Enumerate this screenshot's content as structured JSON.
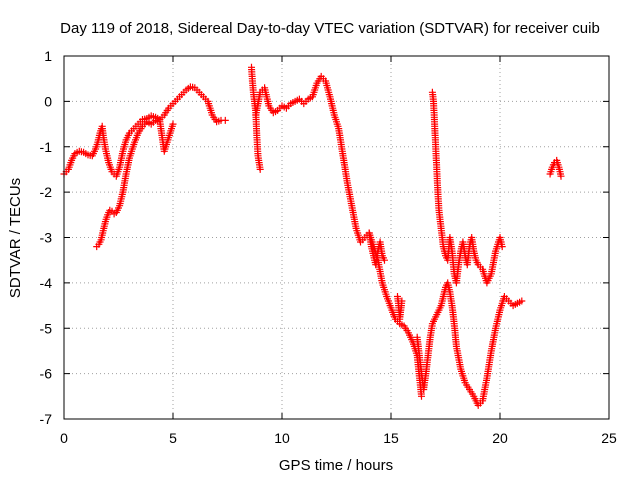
{
  "chart_data": {
    "type": "scatter",
    "title": "Day 119 of 2018, Sidereal Day-to-day VTEC variation (SDTVAR) for receiver cuib",
    "xlabel": "GPS time / hours",
    "ylabel": "SDTVAR / TECUs",
    "xlim": [
      0,
      25
    ],
    "ylim": [
      -7,
      1
    ],
    "xticks": [
      "0",
      "5",
      "10",
      "15",
      "20",
      "25"
    ],
    "yticks": [
      "1",
      "0",
      "-1",
      "-2",
      "-3",
      "-4",
      "-5",
      "-6",
      "-7"
    ],
    "grid": true,
    "marker": "+",
    "color": "#ff0000",
    "series": [
      {
        "name": "SDTVAR",
        "segments": [
          {
            "x": [
              0.0,
              0.2,
              0.35,
              0.5,
              0.7,
              0.9,
              1.1,
              1.3,
              1.45,
              1.55,
              1.65,
              1.75,
              1.8,
              1.9,
              2.05,
              2.2,
              2.4,
              2.55,
              2.7,
              2.85,
              3.0,
              3.2,
              3.4,
              3.6,
              3.8,
              4.0,
              4.2,
              4.4,
              4.6,
              4.8,
              5.0,
              5.2,
              5.4,
              5.6,
              5.8,
              6.0,
              6.2,
              6.4,
              6.6,
              6.8,
              7.0,
              7.2,
              7.4
            ],
            "y": [
              -1.6,
              -1.5,
              -1.3,
              -1.15,
              -1.1,
              -1.12,
              -1.18,
              -1.2,
              -1.05,
              -0.9,
              -0.7,
              -0.55,
              -0.75,
              -1.05,
              -1.35,
              -1.55,
              -1.65,
              -1.45,
              -1.1,
              -0.85,
              -0.7,
              -0.6,
              -0.5,
              -0.4,
              -0.38,
              -0.32,
              -0.35,
              -0.4,
              -0.3,
              -0.15,
              -0.05,
              0.05,
              0.15,
              0.25,
              0.32,
              0.3,
              0.2,
              0.1,
              0.0,
              -0.3,
              -0.45,
              -0.42,
              -0.42
            ]
          },
          {
            "x": [
              1.5,
              1.6,
              1.7,
              1.8,
              1.9,
              2.0,
              2.1,
              2.2,
              2.3,
              2.4,
              2.55,
              2.7,
              2.85,
              3.0,
              3.2,
              3.4,
              3.6,
              3.8,
              4.0,
              4.2,
              4.4,
              4.6,
              4.8,
              5.0
            ],
            "y": [
              -3.2,
              -3.15,
              -3.05,
              -2.85,
              -2.65,
              -2.5,
              -2.4,
              -2.42,
              -2.48,
              -2.45,
              -2.3,
              -2.0,
              -1.6,
              -1.25,
              -0.95,
              -0.7,
              -0.55,
              -0.45,
              -0.5,
              -0.42,
              -0.45,
              -1.1,
              -0.8,
              -0.5
            ]
          },
          {
            "x": [
              8.6,
              8.65,
              8.7,
              8.8,
              8.85,
              8.9,
              9.0
            ],
            "y": [
              0.75,
              0.4,
              0.15,
              -0.25,
              -0.8,
              -1.2,
              -1.5
            ]
          },
          {
            "x": [
              8.8,
              9.0,
              9.2,
              9.4,
              9.6,
              9.8,
              10.0,
              10.2,
              10.4,
              10.6,
              10.8,
              11.0,
              11.2,
              11.4,
              11.6,
              11.8,
              12.0,
              12.2,
              12.4,
              12.6,
              12.8,
              13.0,
              13.2,
              13.4,
              13.6,
              13.8,
              14.0,
              14.2,
              14.4,
              14.6,
              14.8,
              15.0,
              15.2,
              15.4,
              15.6,
              15.8,
              16.0,
              16.2,
              16.4
            ],
            "y": [
              -0.3,
              0.2,
              0.3,
              -0.1,
              -0.25,
              -0.2,
              -0.1,
              -0.15,
              -0.05,
              0.0,
              0.05,
              -0.05,
              0.05,
              0.1,
              0.4,
              0.55,
              0.45,
              0.1,
              -0.3,
              -0.6,
              -1.2,
              -1.8,
              -2.3,
              -2.8,
              -3.1,
              -3.0,
              -2.9,
              -3.2,
              -3.5,
              -4.0,
              -4.3,
              -4.55,
              -4.8,
              -4.9,
              -4.95,
              -5.1,
              -5.3,
              -5.6,
              -6.5
            ]
          },
          {
            "x": [
              14.0,
              14.1,
              14.2,
              14.3,
              14.4,
              14.5,
              14.6,
              14.7
            ],
            "y": [
              -2.9,
              -3.2,
              -3.4,
              -3.6,
              -3.3,
              -3.1,
              -3.4,
              -3.5
            ]
          },
          {
            "x": [
              16.2,
              16.3,
              16.4,
              16.5,
              16.6,
              16.7,
              16.8,
              16.9,
              17.0,
              17.05,
              17.1,
              17.2,
              17.3,
              17.4,
              17.5,
              17.6,
              17.7,
              17.8,
              17.9,
              18.0,
              18.2,
              18.4,
              18.6,
              18.8,
              19.0,
              19.2,
              19.4,
              19.6,
              19.8,
              20.0,
              20.2,
              20.4,
              20.6,
              20.8,
              21.0
            ],
            "y": [
              -5.2,
              -5.6,
              -6.0,
              -6.35,
              -6.0,
              -5.6,
              -5.2,
              -4.9,
              -4.8,
              -4.75,
              -4.7,
              -4.6,
              -4.5,
              -4.3,
              -4.1,
              -4.0,
              -4.2,
              -4.5,
              -4.9,
              -5.4,
              -5.9,
              -6.2,
              -6.35,
              -6.5,
              -6.7,
              -6.6,
              -6.1,
              -5.5,
              -5.0,
              -4.6,
              -4.3,
              -4.4,
              -4.5,
              -4.45,
              -4.4
            ]
          },
          {
            "x": [
              16.9,
              16.95,
              17.0,
              17.05,
              17.1,
              17.15,
              17.2,
              17.3,
              17.4,
              17.5,
              17.6,
              17.7,
              17.8,
              17.9,
              18.0,
              18.1,
              18.2,
              18.3,
              18.4,
              18.5,
              18.6,
              18.7,
              18.8,
              18.9,
              19.0,
              19.2,
              19.4,
              19.6,
              19.8,
              20.0,
              20.1
            ],
            "y": [
              0.2,
              0.0,
              -0.5,
              -1.0,
              -1.5,
              -2.0,
              -2.4,
              -2.8,
              -3.2,
              -3.4,
              -3.5,
              -3.0,
              -3.3,
              -3.8,
              -4.0,
              -3.6,
              -3.3,
              -3.1,
              -3.4,
              -3.6,
              -3.2,
              -3.0,
              -3.3,
              -3.5,
              -3.6,
              -3.7,
              -4.0,
              -3.8,
              -3.3,
              -3.0,
              -3.2
            ]
          },
          {
            "x": [
              15.3,
              15.35,
              15.4,
              15.45,
              15.5
            ],
            "y": [
              -4.3,
              -4.5,
              -4.8,
              -4.6,
              -4.4
            ]
          },
          {
            "x": [
              22.3,
              22.4,
              22.5,
              22.6,
              22.7,
              22.8
            ],
            "y": [
              -1.6,
              -1.45,
              -1.35,
              -1.3,
              -1.45,
              -1.65
            ]
          }
        ]
      }
    ]
  }
}
